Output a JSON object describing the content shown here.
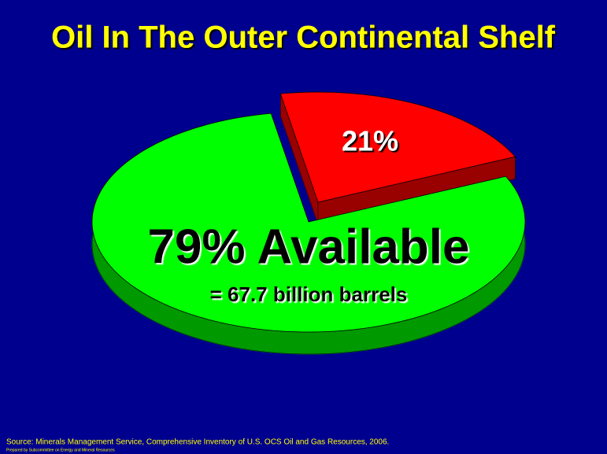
{
  "chart_data": {
    "type": "pie",
    "title": "Oil In The Outer Continental Shelf",
    "values": [
      21,
      79
    ],
    "value_labels": [
      "21%",
      "79% Available"
    ],
    "colors": [
      "#ff0000",
      "#00ff00"
    ],
    "annotation": "= 67.7 billion barrels",
    "source": "Source: Minerals Management Service, Comprehensive Inventory of U.S. OCS Oil and Gas Resources, 2006.",
    "credit": "Prepared by Subcommittee on Energy and Mineral Resources"
  }
}
